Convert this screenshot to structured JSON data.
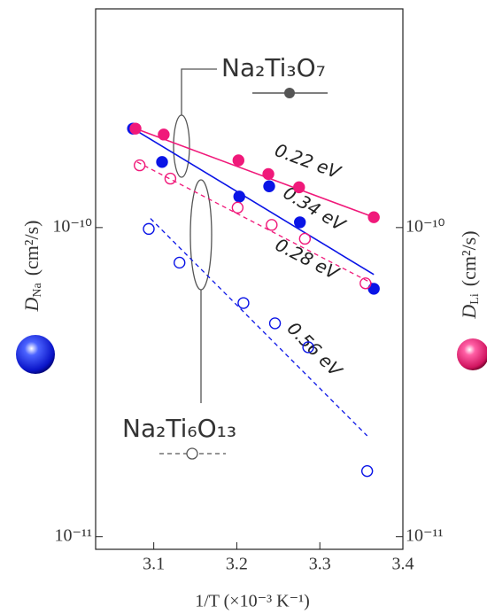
{
  "chart_data": {
    "type": "scatter",
    "ylabel": {
      "symbol": "D",
      "sub": "Na",
      "unit": "(cm²/s)"
    },
    "y2label": {
      "symbol": "D",
      "sub": "Li",
      "unit": "(cm²/s)"
    },
    "xlabel": "1/T  (×10⁻³ K⁻¹)",
    "xlim": [
      3.03,
      3.4
    ],
    "xticks": [
      3.1,
      3.2,
      3.3,
      3.4
    ],
    "ylim": [
      9.1e-12,
      5.1e-10
    ],
    "yticks": [
      {
        "value": 1e-10,
        "label": "10⁻¹⁰"
      },
      {
        "value": 1e-11,
        "label": "10⁻¹¹"
      }
    ],
    "y2lim": [
      9.1e-12,
      5.1e-10
    ],
    "y2ticks": [
      {
        "value": 1e-10,
        "label": "10⁻¹⁰"
      },
      {
        "value": 1e-11,
        "label": "10⁻¹¹"
      }
    ],
    "log_y": true,
    "legend": [
      {
        "label": "Na₂Ti₃O₇",
        "marker": "filled",
        "line": "solid"
      },
      {
        "label": "Na₂Ti₆O₁₃",
        "marker": "open",
        "line": "dashed"
      }
    ],
    "series": [
      {
        "color": "#0a14e6",
        "filled": true,
        "axis": "y",
        "x": [
          3.075,
          3.11,
          3.203,
          3.239,
          3.276,
          3.365
        ],
        "values": [
          2.09e-10,
          1.63e-10,
          1.26e-10,
          1.36e-10,
          1.04e-10,
          6.34e-11
        ]
      },
      {
        "color": "#f0197a",
        "filled": true,
        "axis": "y2",
        "x": [
          3.078,
          3.112,
          3.202,
          3.238,
          3.275,
          3.365
        ],
        "values": [
          2.09e-10,
          2e-10,
          1.65e-10,
          1.49e-10,
          1.35e-10,
          1.08e-10
        ]
      },
      {
        "color": "#f0197a",
        "filled": false,
        "axis": "y2",
        "x": [
          3.083,
          3.12,
          3.201,
          3.242,
          3.282,
          3.355
        ],
        "values": [
          1.59e-10,
          1.44e-10,
          1.16e-10,
          1.02e-10,
          9.2e-11,
          6.6e-11
        ]
      },
      {
        "color": "#0a14e6",
        "filled": false,
        "axis": "y",
        "x": [
          3.094,
          3.131,
          3.208,
          3.246,
          3.286,
          3.357
        ],
        "values": [
          9.9e-11,
          7.7e-11,
          5.7e-11,
          4.9e-11,
          4.1e-11,
          1.63e-11
        ]
      }
    ],
    "fits": [
      {
        "label": "0.22 eV",
        "color": "#f0197a",
        "dash": false,
        "x": [
          3.078,
          3.365
        ],
        "values": [
          2.09e-10,
          1.08e-10
        ]
      },
      {
        "label": "0.34 eV",
        "color": "#0a14e6",
        "dash": false,
        "x": [
          3.075,
          3.365
        ],
        "values": [
          2.09e-10,
          7.05e-11
        ]
      },
      {
        "label": "0.28 eV",
        "color": "#f0197a",
        "dash": true,
        "x": [
          3.08,
          3.363
        ],
        "values": [
          1.63e-10,
          6.6e-11
        ]
      },
      {
        "label": "0.56 eV",
        "color": "#0a14e6",
        "dash": true,
        "x": [
          3.096,
          3.357
        ],
        "values": [
          1.07e-10,
          2.12e-11
        ]
      }
    ]
  }
}
